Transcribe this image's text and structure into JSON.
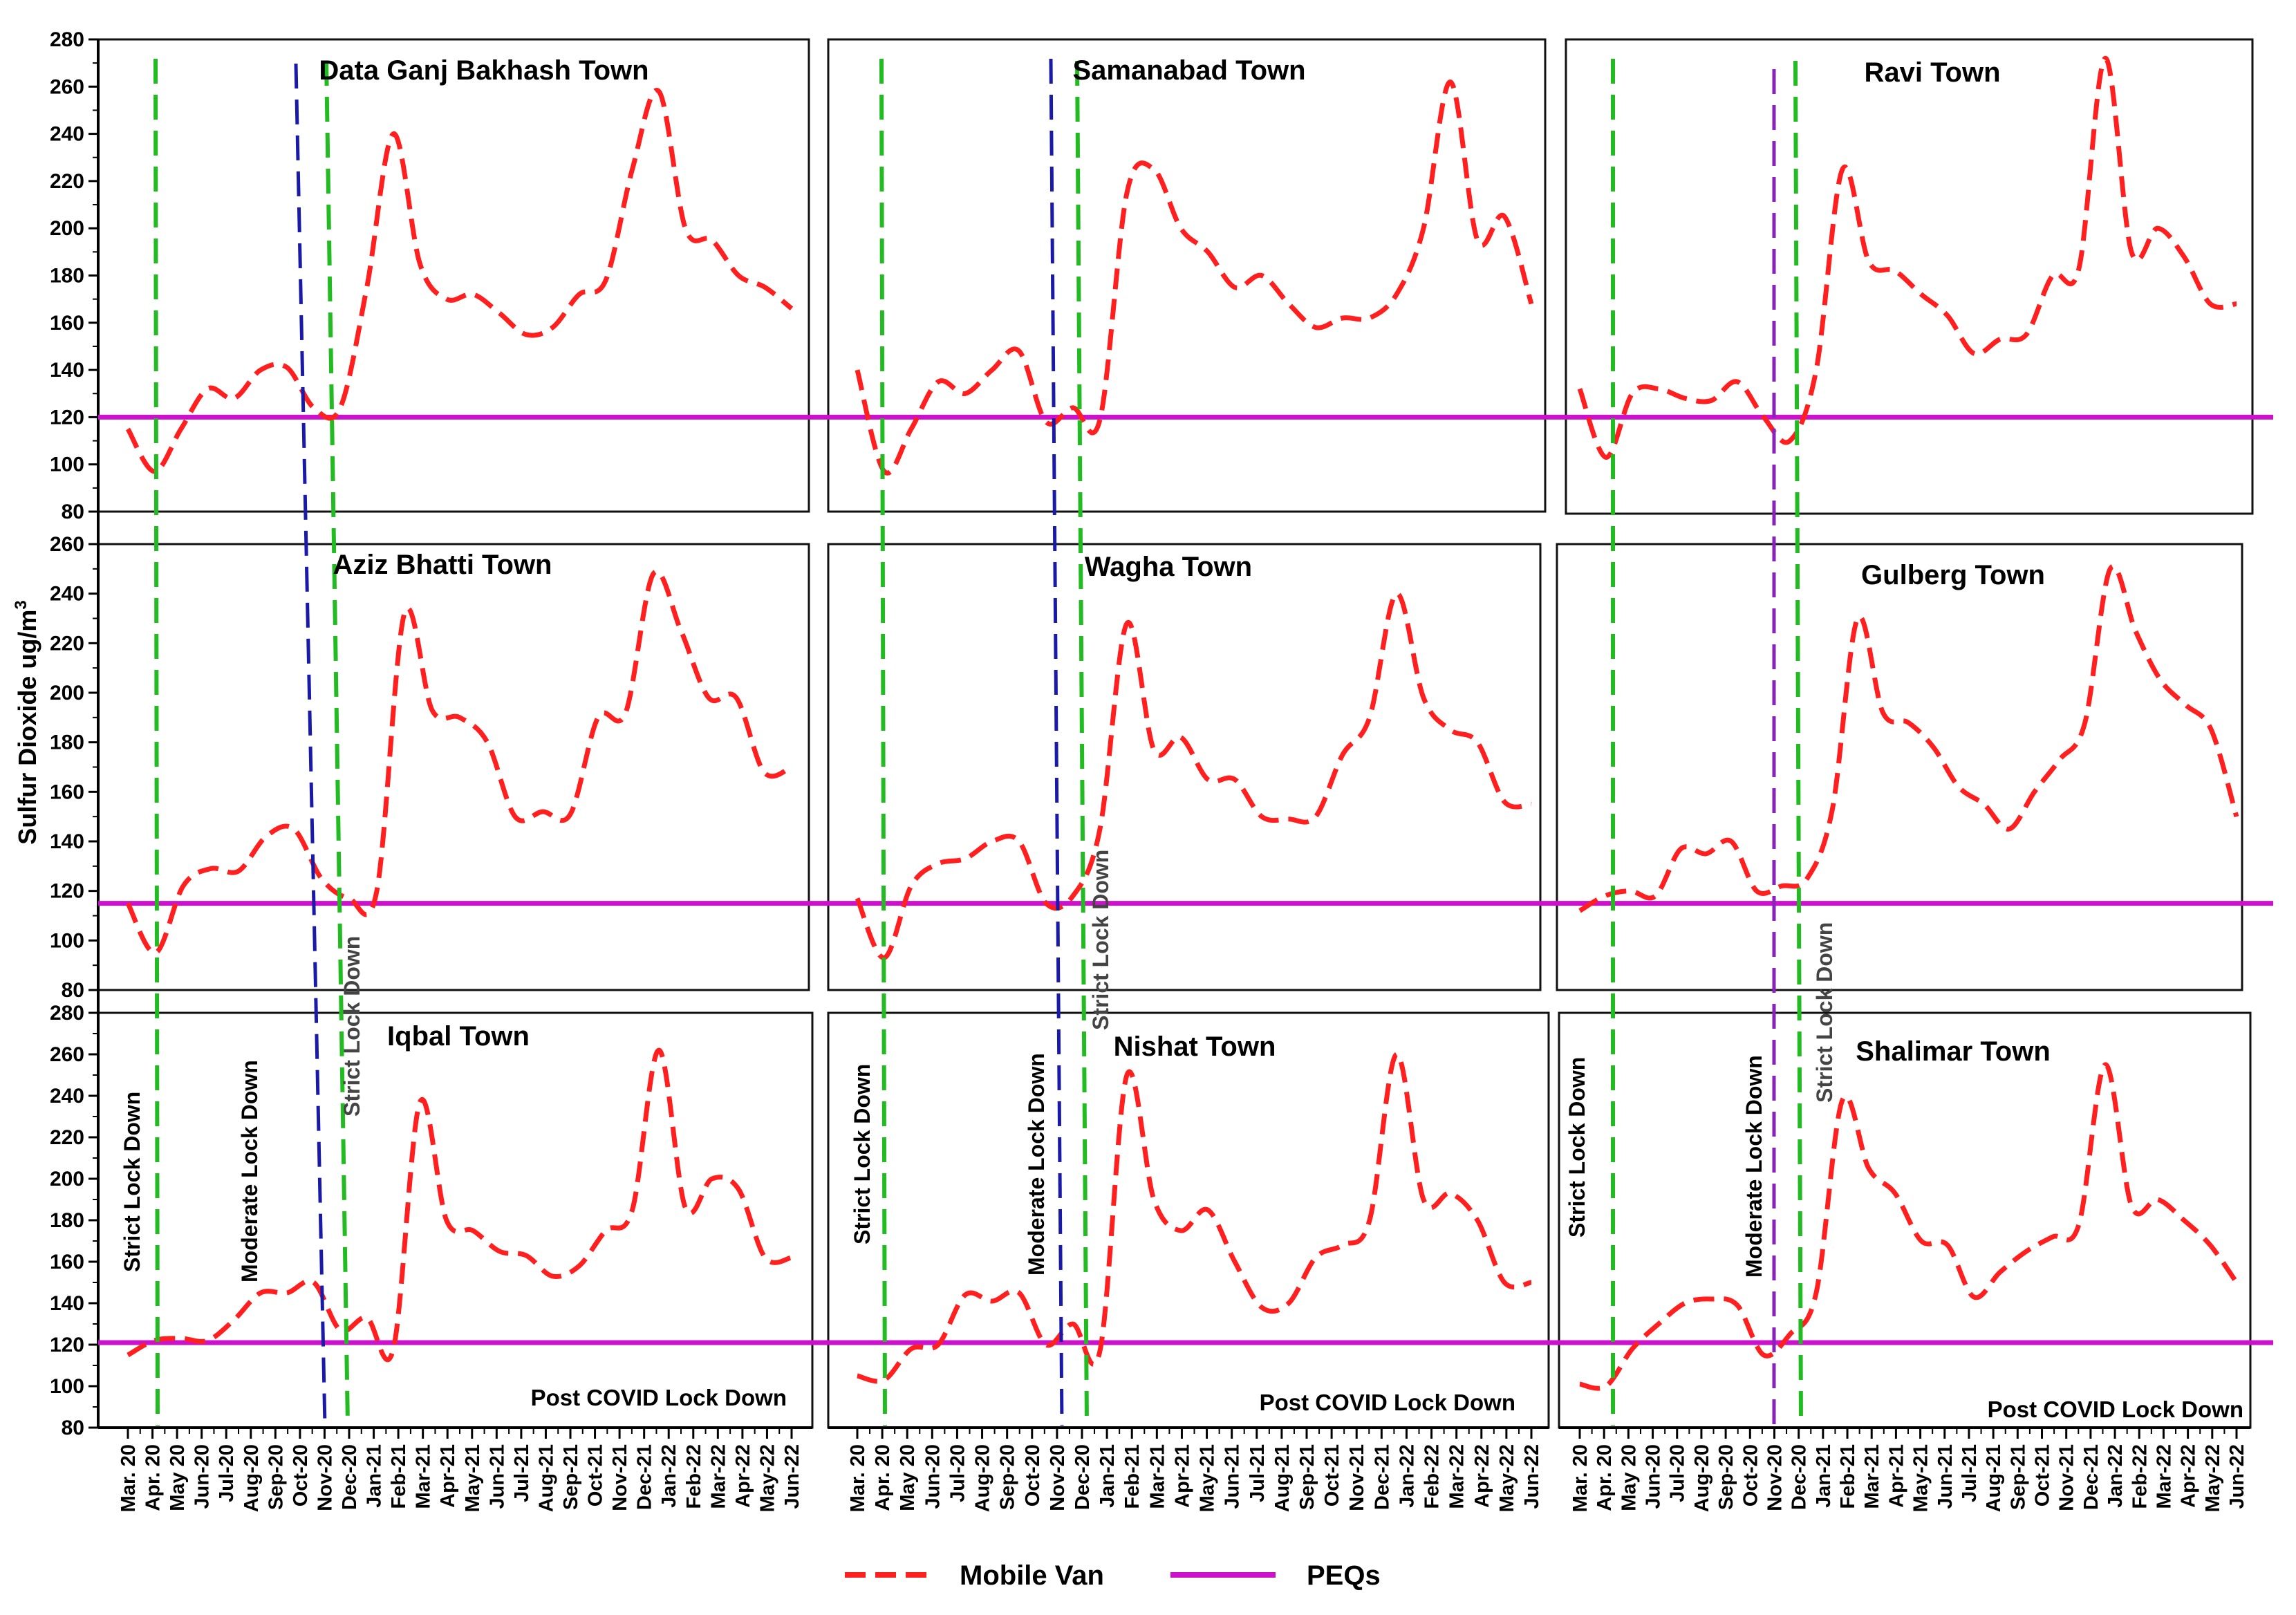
{
  "chart_data": {
    "type": "line",
    "ylabel": "Sulfur Dioxide ug/m",
    "ylabel_superscript": "3",
    "months": [
      "Mar. 20",
      "Apr. 20",
      "May 20",
      "Jun-20",
      "Jul-20",
      "Aug-20",
      "Sep-20",
      "Oct-20",
      "Nov-20",
      "Dec-20",
      "Jan-21",
      "Feb-21",
      "Mar-21",
      "Apr-21",
      "May-21",
      "Jun-21",
      "Jul-21",
      "Aug-21",
      "Sep-21",
      "Oct-21",
      "Nov-21",
      "Dec-21",
      "Jan-22",
      "Feb-22",
      "Mar-22",
      "Apr-22",
      "May-22",
      "Jun-22"
    ],
    "series_names": {
      "mobile_van": "Mobile Van",
      "peqs": "PEQs"
    },
    "colors": {
      "mobile_van": "#ff1f1f",
      "peqs": "#cc11cc",
      "strict": "#22bb22",
      "moderate_blue": "#1a1aa8",
      "moderate_purple": "#8822bb"
    },
    "peqs_value": 120,
    "phase_labels": {
      "strict": "Strict Lock Down",
      "moderate": "Moderate Lock Down",
      "post": "Post COVID Lock Down"
    },
    "rows": [
      {
        "ylim": [
          80,
          280
        ],
        "yticks": [
          80,
          100,
          120,
          140,
          160,
          180,
          200,
          220,
          240,
          260,
          280
        ],
        "peqs": 120
      },
      {
        "ylim": [
          80,
          260
        ],
        "yticks": [
          80,
          100,
          120,
          140,
          160,
          180,
          200,
          220,
          240,
          260
        ],
        "peqs": 115
      },
      {
        "ylim": [
          80,
          280
        ],
        "yticks": [
          80,
          100,
          120,
          140,
          160,
          180,
          200,
          220,
          240,
          260,
          280
        ],
        "peqs": 121
      }
    ],
    "panels": [
      {
        "title": "Data Ganj Bakhash Town",
        "row": 0,
        "col": 0,
        "values": [
          115,
          97,
          115,
          132,
          128,
          140,
          141,
          124,
          124,
          175,
          240,
          185,
          170,
          172,
          164,
          155,
          158,
          172,
          178,
          225,
          258,
          200,
          195,
          180,
          175,
          166
        ]
      },
      {
        "title": "Samanabad Town",
        "row": 0,
        "col": 1,
        "values": [
          140,
          97,
          115,
          135,
          130,
          140,
          148,
          118,
          124,
          119,
          215,
          225,
          200,
          190,
          175,
          180,
          168,
          158,
          162,
          162,
          172,
          200,
          262,
          195,
          205,
          168
        ]
      },
      {
        "title": "Ravi Town",
        "row": 0,
        "col": 2,
        "values": [
          132,
          103,
          130,
          132,
          128,
          127,
          135,
          120,
          110,
          140,
          225,
          186,
          182,
          172,
          163,
          147,
          153,
          155,
          180,
          183,
          272,
          190,
          200,
          188,
          168,
          168
        ]
      },
      {
        "title": "Aziz Bhatti Town",
        "row": 1,
        "col": 0,
        "values": [
          115,
          95,
          122,
          129,
          128,
          142,
          145,
          125,
          117,
          120,
          232,
          193,
          190,
          180,
          150,
          152,
          151,
          190,
          192,
          248,
          225,
          198,
          198,
          168,
          170
        ]
      },
      {
        "title": "Wagha Town",
        "row": 1,
        "col": 1,
        "values": [
          117,
          93,
          122,
          131,
          133,
          140,
          140,
          115,
          118,
          145,
          228,
          177,
          182,
          165,
          165,
          150,
          149,
          150,
          175,
          190,
          240,
          198,
          185,
          180,
          156,
          155
        ]
      },
      {
        "title": "Gulberg Town",
        "row": 1,
        "col": 2,
        "values": [
          112,
          118,
          120,
          118,
          137,
          135,
          140,
          120,
          122,
          125,
          153,
          230,
          192,
          188,
          178,
          162,
          155,
          145,
          160,
          173,
          188,
          250,
          225,
          205,
          195,
          185,
          150
        ]
      },
      {
        "title": "Iqbal Town",
        "row": 2,
        "col": 0,
        "values": [
          115,
          122,
          123,
          122,
          132,
          145,
          145,
          150,
          127,
          133,
          118,
          237,
          180,
          175,
          165,
          163,
          153,
          158,
          175,
          185,
          262,
          186,
          200,
          195,
          162,
          162
        ]
      },
      {
        "title": "Nishat Town",
        "row": 2,
        "col": 1,
        "values": [
          105,
          103,
          118,
          120,
          144,
          141,
          145,
          120,
          130,
          117,
          250,
          190,
          175,
          185,
          160,
          138,
          140,
          162,
          168,
          180,
          260,
          190,
          193,
          180,
          150,
          150
        ]
      },
      {
        "title": "Shalimar Town",
        "row": 2,
        "col": 2,
        "values": [
          101,
          100,
          118,
          130,
          140,
          142,
          139,
          115,
          125,
          145,
          238,
          205,
          193,
          170,
          168,
          143,
          155,
          165,
          172,
          178,
          255,
          187,
          190,
          180,
          168,
          150
        ]
      }
    ]
  }
}
